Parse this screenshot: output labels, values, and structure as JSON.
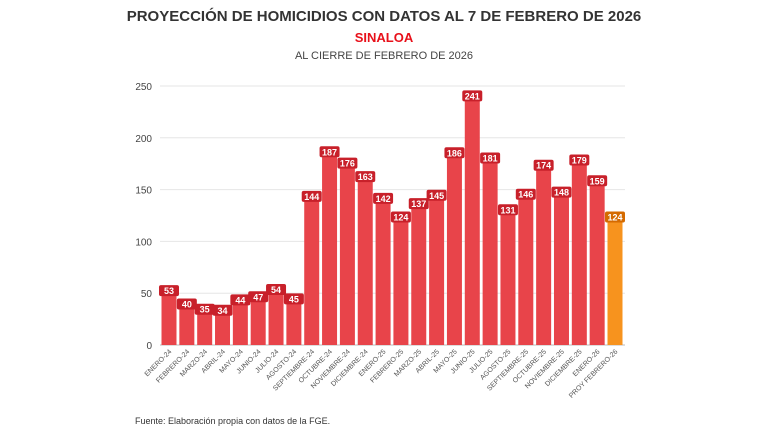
{
  "title": "PROYECCIÓN DE HOMICIDIOS CON DATOS AL 7 DE FEBRERO DE 2026",
  "subtitle": "SINALOA",
  "subtitle2": "AL CIERRE DE FEBRERO DE 2026",
  "source": "Fuente: Elaboración propia con datos de la FGE.",
  "colors": {
    "bar": "#e8444a",
    "projection": "#f7931e",
    "label_bg": "#c8202a",
    "projection_label_bg": "#d46a00"
  },
  "chart_data": {
    "type": "bar",
    "categories": [
      "ENERO-24",
      "FEBRERO-24",
      "MARZO-24",
      "ABRIL-24",
      "MAYO-24",
      "JUNIO-24",
      "JULIO-24",
      "AGOSTO-24",
      "SEPTIEMBRE-24",
      "OCTUBRE-24",
      "NOVIEMBRE-24",
      "DICIEMBRE-24",
      "ENERO-25",
      "FEBRERO-25",
      "MARZO-25",
      "ABRIL-25",
      "MAYO-25",
      "JUNIO-25",
      "JULIO-25",
      "AGOSTO-25",
      "SEPTIEMBRE-25",
      "OCTUBRE-25",
      "NOVIEMBRE-25",
      "DICIEMBRE-25",
      "ENERO-26",
      "PROY FEBRERO-26"
    ],
    "values": [
      53,
      40,
      35,
      34,
      44,
      47,
      54,
      45,
      144,
      187,
      176,
      163,
      142,
      124,
      137,
      145,
      186,
      241,
      181,
      131,
      146,
      174,
      148,
      179,
      159,
      124
    ],
    "projection_index": 25,
    "ylim": [
      0,
      250
    ],
    "yticks": [
      0,
      50,
      100,
      150,
      200,
      250
    ],
    "grid": true
  }
}
